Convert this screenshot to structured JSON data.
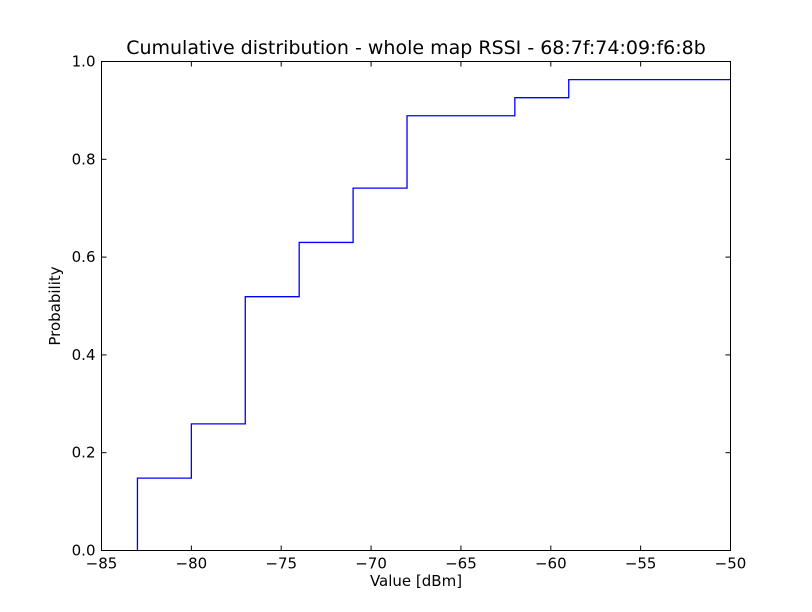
{
  "chart_data": {
    "type": "line",
    "drawstyle": "steps-post",
    "title": "Cumulative distribution - whole map RSSI - 68:7f:74:09:f6:8b",
    "xlabel": "Value [dBm]",
    "ylabel": "Probability",
    "xlim": [
      -85,
      -50
    ],
    "ylim": [
      0.0,
      1.0
    ],
    "x_ticks": [
      -85,
      -80,
      -75,
      -70,
      -65,
      -60,
      -55,
      -50
    ],
    "x_tick_labels": [
      "−85",
      "−80",
      "−75",
      "−70",
      "−65",
      "−60",
      "−55",
      "−50"
    ],
    "y_ticks": [
      0.0,
      0.2,
      0.4,
      0.6,
      0.8,
      1.0
    ],
    "y_tick_labels": [
      "0.0",
      "0.2",
      "0.4",
      "0.6",
      "0.8",
      "1.0"
    ],
    "grid": false,
    "legend": "none",
    "series": [
      {
        "color": "#0000ff",
        "x": [
          -83,
          -83,
          -80,
          -77,
          -74,
          -71,
          -68,
          -62,
          -59,
          -50
        ],
        "y": [
          0.0,
          0.148,
          0.259,
          0.519,
          0.63,
          0.741,
          0.889,
          0.926,
          0.963,
          0.963
        ]
      }
    ]
  }
}
